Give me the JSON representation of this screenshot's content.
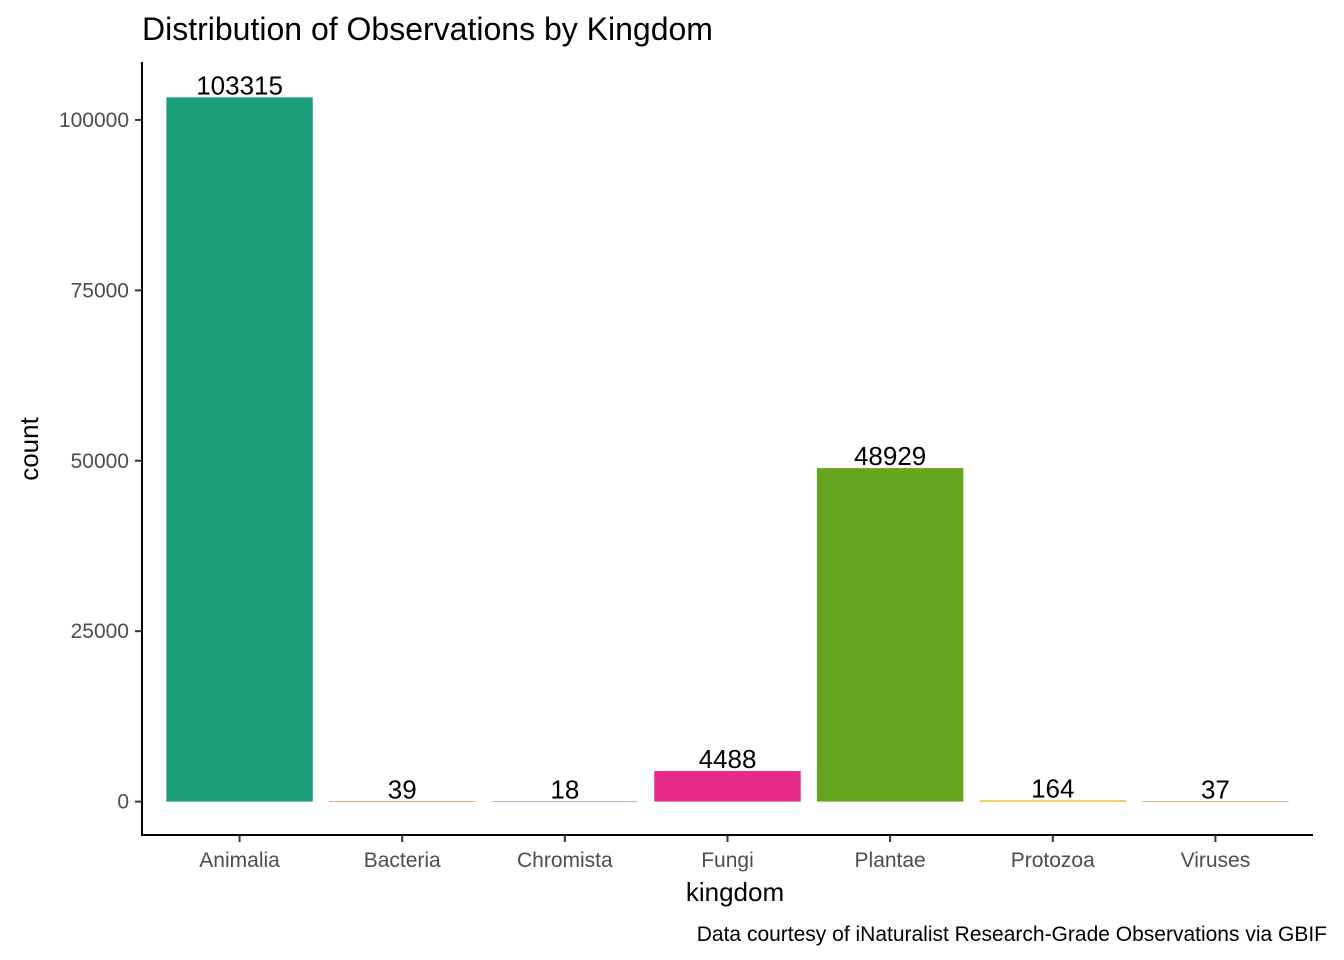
{
  "chart_data": {
    "type": "bar",
    "title": "Distribution of Observations by Kingdom",
    "xlabel": "kingdom",
    "ylabel": "count",
    "caption": "Data courtesy of iNaturalist Research-Grade Observations via GBIF",
    "categories": [
      "Animalia",
      "Bacteria",
      "Chromista",
      "Fungi",
      "Plantae",
      "Protozoa",
      "Viruses"
    ],
    "values": [
      103315,
      39,
      18,
      4488,
      48929,
      164,
      37
    ],
    "colors": [
      "#1b9e77",
      "#d95f02",
      "#7570b3",
      "#e7298a",
      "#66a61e",
      "#e6ab02",
      "#a6761d"
    ],
    "yticks": [
      0,
      25000,
      50000,
      75000,
      100000
    ],
    "ylim": [
      -4900,
      108500
    ],
    "grid": false,
    "legend": "none"
  }
}
